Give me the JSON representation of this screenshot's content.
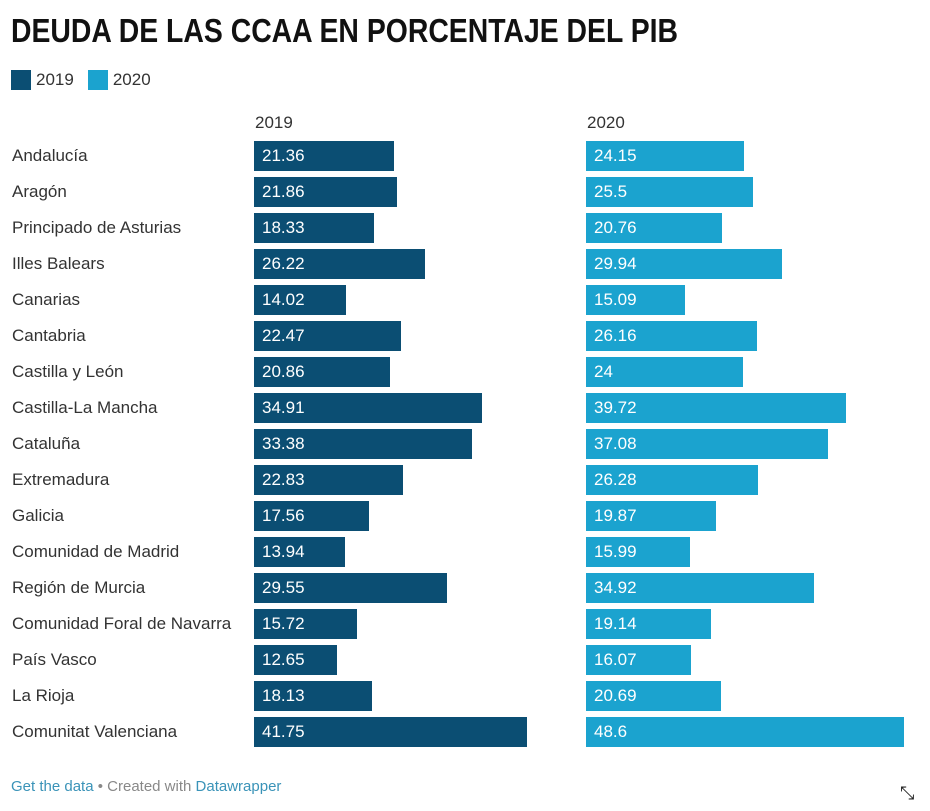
{
  "colors": {
    "2019": "#0b4e73",
    "2020": "#1ba3cf"
  },
  "chart_data": {
    "type": "bar",
    "title": "DEUDA DE LAS CCAA EN PORCENTAJE DEL PIB",
    "legend": [
      "2019",
      "2020"
    ],
    "legend_placement": "top-left",
    "grid": false,
    "categories": [
      "Andalucía",
      "Aragón",
      "Principado de Asturias",
      "Illes Balears",
      "Canarias",
      "Cantabria",
      "Castilla y León",
      "Castilla-La Mancha",
      "Cataluña",
      "Extremadura",
      "Galicia",
      "Comunidad de Madrid",
      "Región de Murcia",
      "Comunidad Foral de Navarra",
      "País Vasco",
      "La Rioja",
      "Comunitat Valenciana"
    ],
    "series": [
      {
        "name": "2019",
        "values": [
          21.36,
          21.86,
          18.33,
          26.22,
          14.02,
          22.47,
          20.86,
          34.91,
          33.38,
          22.83,
          17.56,
          13.94,
          29.55,
          15.72,
          12.65,
          18.13,
          41.75
        ]
      },
      {
        "name": "2020",
        "values": [
          "24.15",
          "25.5",
          "20.76",
          "29.94",
          "15.09",
          "26.16",
          "24",
          "39.72",
          "37.08",
          "26.28",
          "19.87",
          "15.99",
          "34.92",
          "19.14",
          "16.07",
          "20.69",
          "48.6"
        ]
      }
    ]
  },
  "footer": {
    "get_data": "Get the data",
    "sep": " • Created with ",
    "datawrapper": "Datawrapper"
  },
  "icons": {
    "expand": "expand-arrows-icon"
  }
}
